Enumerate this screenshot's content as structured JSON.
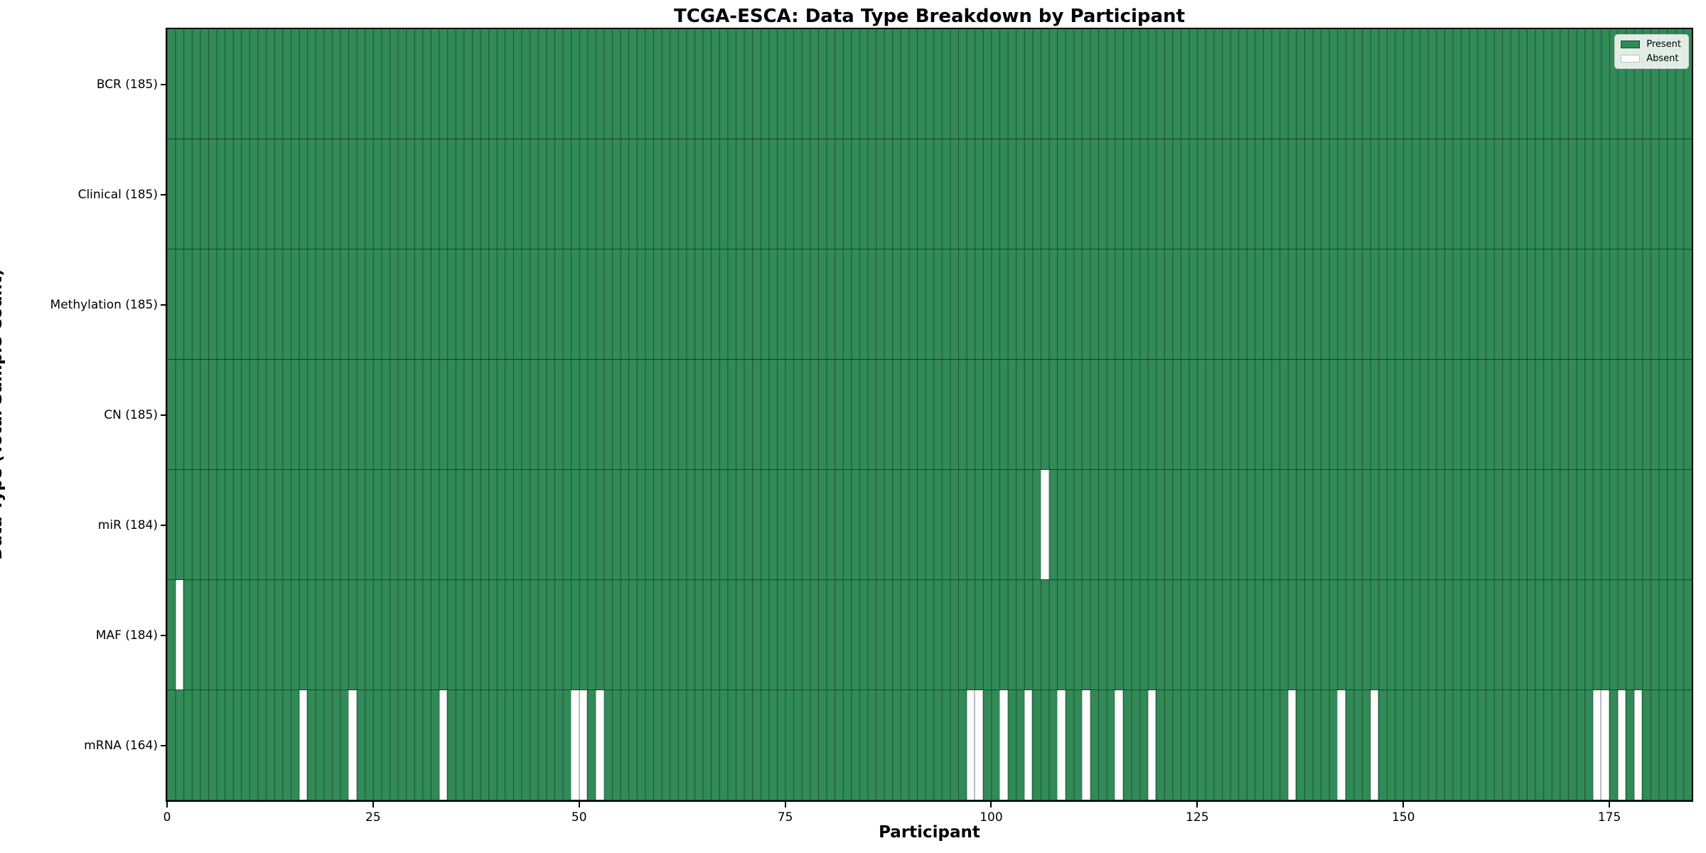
{
  "chart_data": {
    "type": "heatmap",
    "title": "TCGA-ESCA: Data Type Breakdown by Participant",
    "xlabel": "Participant",
    "ylabel": "Data Type (Total Sample Count)",
    "x_ticks": [
      0,
      25,
      50,
      75,
      100,
      125,
      150,
      175
    ],
    "x_range": [
      0,
      185
    ],
    "n_participants": 185,
    "grid": false,
    "legend_position": "upper right",
    "colors": {
      "present": "#2e8b57",
      "absent": "#ffffff",
      "cell_edge": "rgba(0,0,0,0.42)",
      "row_separator": "rgba(0,0,0,0.5)",
      "spine": "#000000"
    },
    "legend": [
      {
        "label": "Present",
        "color": "#2e8b57"
      },
      {
        "label": "Absent",
        "color": "#ffffff"
      }
    ],
    "rows": [
      {
        "label": "BCR (185)",
        "data_type": "BCR",
        "present_count": 185,
        "absent_participants": []
      },
      {
        "label": "Clinical (185)",
        "data_type": "Clinical",
        "present_count": 185,
        "absent_participants": []
      },
      {
        "label": "Methylation (185)",
        "data_type": "Methylation",
        "present_count": 185,
        "absent_participants": []
      },
      {
        "label": "CN (185)",
        "data_type": "CN",
        "present_count": 185,
        "absent_participants": []
      },
      {
        "label": "miR (184)",
        "data_type": "miR",
        "present_count": 184,
        "absent_participants": [
          106
        ]
      },
      {
        "label": "MAF (184)",
        "data_type": "MAF",
        "present_count": 184,
        "absent_participants": [
          1
        ]
      },
      {
        "label": "mRNA (164)",
        "data_type": "mRNA",
        "present_count": 164,
        "absent_participants": [
          16,
          22,
          33,
          49,
          50,
          52,
          97,
          98,
          101,
          104,
          108,
          111,
          115,
          119,
          136,
          142,
          146,
          173,
          174,
          176,
          178
        ]
      }
    ]
  }
}
